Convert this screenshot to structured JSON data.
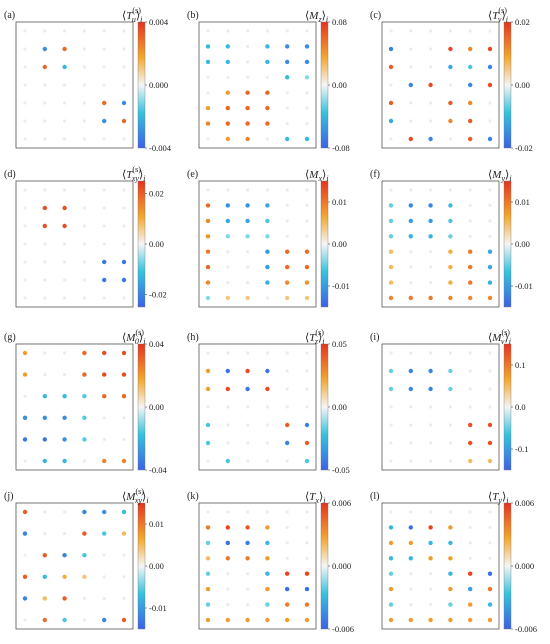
{
  "colormap": {
    "stops": [
      {
        "t": 0.0,
        "color": "#3b62e6"
      },
      {
        "t": 0.28,
        "color": "#35c2dd"
      },
      {
        "t": 0.5,
        "color": "#f5f5f5"
      },
      {
        "t": 0.72,
        "color": "#f2a72e"
      },
      {
        "t": 1.0,
        "color": "#e5331f"
      }
    ]
  },
  "chart_data": [
    {
      "type": "scatter",
      "panel_label": "(a)",
      "title": "⟨T_u^(s)⟩_i",
      "clim": [
        -0.004,
        0.004
      ],
      "ticks": [
        "0.004",
        "0.000",
        "-0.004"
      ],
      "tick_values": [
        0.004,
        0.0,
        -0.004
      ],
      "grid": [
        [
          0,
          0,
          0,
          0,
          0,
          0
        ],
        [
          0,
          -0.003,
          0.003,
          0,
          0,
          0
        ],
        [
          0,
          0.003,
          -0.002,
          0,
          0,
          0
        ],
        [
          0,
          0,
          0,
          0,
          0,
          0
        ],
        [
          0,
          0,
          0,
          0,
          0.003,
          -0.003
        ],
        [
          0,
          0,
          0,
          0,
          -0.003,
          0.003
        ],
        [
          0,
          0,
          0,
          0,
          0,
          0
        ]
      ]
    },
    {
      "type": "scatter",
      "panel_label": "(b)",
      "title": "⟨M_z⟩_i",
      "clim": [
        -0.08,
        0.08
      ],
      "ticks": [
        "0.08",
        "0.00",
        "-0.08"
      ],
      "tick_values": [
        0.08,
        0.0,
        -0.08
      ],
      "grid": [
        [
          0,
          0,
          0,
          0,
          0,
          0
        ],
        [
          -0.04,
          -0.04,
          0,
          -0.04,
          -0.06,
          -0.06
        ],
        [
          -0.04,
          -0.04,
          0,
          -0.04,
          -0.06,
          -0.06
        ],
        [
          0,
          0,
          0,
          0,
          -0.04,
          -0.02
        ],
        [
          0,
          0.04,
          0.06,
          0.06,
          0,
          0
        ],
        [
          0.04,
          0.06,
          0.06,
          0.06,
          0,
          0
        ],
        [
          0.05,
          0.06,
          0.06,
          0.06,
          0,
          0
        ],
        [
          0,
          0.04,
          0.05,
          0,
          -0.04,
          -0.04
        ]
      ]
    },
    {
      "type": "scatter",
      "panel_label": "(c)",
      "title": "⟨T_v^(s)⟩_i",
      "clim": [
        -0.02,
        0.02
      ],
      "ticks": [
        "0.02",
        "0.00",
        "-0.02"
      ],
      "tick_values": [
        0.02,
        0.0,
        -0.02
      ],
      "grid": [
        [
          0,
          0,
          0,
          0,
          0,
          0
        ],
        [
          -0.016,
          0,
          0,
          0.018,
          0.012,
          0.018
        ],
        [
          0.016,
          0,
          0,
          -0.012,
          -0.008,
          -0.016
        ],
        [
          0,
          -0.016,
          0.018,
          0,
          -0.016,
          0.018
        ],
        [
          0.016,
          0,
          0,
          0.016,
          0.012,
          0
        ],
        [
          -0.012,
          0,
          0,
          0.012,
          0.016,
          0
        ],
        [
          0,
          0.018,
          -0.016,
          0,
          0.016,
          -0.016
        ]
      ]
    },
    {
      "type": "scatter",
      "panel_label": "(d)",
      "title": "⟨T_xy^(s)⟩_i",
      "clim": [
        -0.025,
        0.025
      ],
      "ticks": [
        "0.02",
        "0.00",
        "-0.02"
      ],
      "tick_values": [
        0.02,
        0.0,
        -0.02
      ],
      "grid": [
        [
          0,
          0,
          0,
          0,
          0,
          0
        ],
        [
          0,
          0.022,
          0.022,
          0,
          0,
          0
        ],
        [
          0,
          0.022,
          0.022,
          0,
          0,
          0
        ],
        [
          0,
          0,
          0,
          0,
          0,
          0
        ],
        [
          0,
          0,
          0,
          0,
          -0.022,
          -0.022
        ],
        [
          0,
          0,
          0,
          0,
          -0.022,
          -0.022
        ],
        [
          0,
          0,
          0,
          0,
          0,
          0
        ]
      ]
    },
    {
      "type": "scatter",
      "panel_label": "(e)",
      "title": "⟨M_x⟩_i",
      "clim": [
        -0.015,
        0.015
      ],
      "ticks": [
        "0.01",
        "0.00",
        "-0.01"
      ],
      "tick_values": [
        0.01,
        0.0,
        -0.01
      ],
      "grid": [
        [
          0,
          0,
          0,
          0,
          0,
          0
        ],
        [
          0.011,
          -0.011,
          -0.011,
          -0.009,
          0,
          0
        ],
        [
          0.009,
          -0.009,
          -0.009,
          -0.006,
          0,
          0
        ],
        [
          0.008,
          -0.004,
          -0.004,
          -0.004,
          0,
          0
        ],
        [
          0.01,
          0,
          0,
          -0.01,
          0.011,
          0.011
        ],
        [
          0.011,
          0,
          0,
          -0.01,
          0.011,
          0.011
        ],
        [
          0.009,
          0,
          0,
          -0.008,
          0.009,
          0.008
        ],
        [
          -0.004,
          0.004,
          0.004,
          0,
          0.004,
          0.004
        ]
      ]
    },
    {
      "type": "scatter",
      "panel_label": "(f)",
      "title": "⟨M_y⟩_i",
      "clim": [
        -0.015,
        0.015
      ],
      "ticks": [
        "0.01",
        "0.00",
        "-0.01"
      ],
      "tick_values": [
        0.01,
        0.0,
        -0.01
      ],
      "grid": [
        [
          0,
          0,
          0,
          0,
          0,
          0
        ],
        [
          -0.005,
          -0.012,
          -0.012,
          -0.007,
          0,
          0
        ],
        [
          -0.005,
          -0.01,
          -0.01,
          -0.006,
          0,
          0
        ],
        [
          -0.005,
          -0.008,
          -0.008,
          -0.005,
          0,
          0
        ],
        [
          0.005,
          0,
          0,
          0.006,
          0.01,
          -0.009
        ],
        [
          0.005,
          0,
          0,
          0.006,
          0.01,
          -0.009
        ],
        [
          0.005,
          0,
          0,
          0.006,
          0.01,
          -0.008
        ],
        [
          0.009,
          0.01,
          0.01,
          0.009,
          0.009,
          0.009
        ]
      ]
    },
    {
      "type": "scatter",
      "panel_label": "(g)",
      "title": "⟨M_0^(s)⟩_i",
      "clim": [
        -0.04,
        0.04
      ],
      "ticks": [
        "0.04",
        "0.00",
        "-0.04"
      ],
      "tick_values": [
        0.04,
        0.0,
        -0.04
      ],
      "grid": [
        [
          0.02,
          0,
          0,
          0.03,
          0.035,
          0.035
        ],
        [
          0.02,
          0,
          0,
          0.03,
          0.035,
          0.035
        ],
        [
          0,
          -0.02,
          -0.02,
          -0.015,
          0.03,
          0.03
        ],
        [
          -0.03,
          -0.03,
          -0.03,
          -0.015,
          0,
          0
        ],
        [
          -0.035,
          -0.035,
          -0.03,
          -0.015,
          0,
          0
        ],
        [
          0,
          -0.02,
          -0.02,
          0,
          0.025,
          0.025
        ]
      ]
    },
    {
      "type": "scatter",
      "panel_label": "(h)",
      "title": "⟨T_z^(s)⟩_i",
      "clim": [
        -0.05,
        0.05
      ],
      "ticks": [
        "0.05",
        "0.00",
        "-0.05"
      ],
      "tick_values": [
        0.05,
        0.0,
        -0.05
      ],
      "grid": [
        [
          0,
          0,
          0,
          0,
          0,
          0
        ],
        [
          0.025,
          -0.045,
          0.045,
          -0.045,
          0,
          0
        ],
        [
          0.025,
          0.045,
          -0.045,
          0.045,
          0,
          0
        ],
        [
          0,
          0,
          0,
          0,
          0,
          0
        ],
        [
          -0.02,
          0,
          0,
          0,
          0.04,
          -0.04
        ],
        [
          -0.02,
          0,
          0,
          0,
          -0.04,
          0.04
        ],
        [
          0,
          -0.02,
          0,
          0,
          0,
          -0.02
        ]
      ]
    },
    {
      "type": "scatter",
      "panel_label": "(i)",
      "title": "⟨M_v^(s)⟩_i",
      "clim": [
        -0.15,
        0.15
      ],
      "ticks": [
        "0.1",
        "0.0",
        "-0.1"
      ],
      "tick_values": [
        0.1,
        0.0,
        -0.1
      ],
      "grid": [
        [
          0,
          0,
          0,
          0,
          0,
          0
        ],
        [
          -0.05,
          -0.12,
          -0.12,
          -0.05,
          0,
          0
        ],
        [
          -0.05,
          -0.12,
          -0.12,
          -0.05,
          0,
          0
        ],
        [
          0,
          0,
          0,
          0,
          0,
          0
        ],
        [
          0,
          0,
          0,
          0,
          0.13,
          0.13
        ],
        [
          0,
          0,
          0,
          0,
          0.13,
          0.13
        ],
        [
          0,
          0,
          0,
          0,
          0.05,
          0.05
        ]
      ]
    },
    {
      "type": "scatter",
      "panel_label": "(j)",
      "title": "⟨M_xy^(s)⟩_i",
      "clim": [
        -0.015,
        0.015
      ],
      "ticks": [
        "0.01",
        "0.00",
        "-0.01"
      ],
      "tick_values": [
        0.01,
        0.0,
        -0.01
      ],
      "grid": [
        [
          0.012,
          0,
          0,
          -0.012,
          -0.011,
          -0.007
        ],
        [
          -0.012,
          0,
          0,
          0.012,
          -0.006,
          0.005
        ],
        [
          0,
          0.012,
          -0.012,
          -0.006,
          0,
          0
        ],
        [
          0.012,
          -0.007,
          0.006,
          0.004,
          0,
          0
        ],
        [
          -0.012,
          0.005,
          0.012,
          0,
          0,
          0
        ],
        [
          0,
          0.011,
          -0.006,
          0,
          -0.012,
          0.012
        ]
      ]
    },
    {
      "type": "scatter",
      "panel_label": "(k)",
      "title": "⟨T_x⟩_i",
      "clim": [
        -0.006,
        0.006
      ],
      "ticks": [
        "0.006",
        "0.000",
        "-0.006"
      ],
      "tick_values": [
        0.006,
        0.0,
        -0.006
      ],
      "grid": [
        [
          0,
          0,
          0,
          0,
          0,
          0
        ],
        [
          0.004,
          0.0055,
          0.005,
          0.003,
          0,
          0
        ],
        [
          -0.002,
          -0.0055,
          -0.005,
          -0.003,
          0,
          0
        ],
        [
          0.002,
          0.004,
          0.004,
          0.003,
          0,
          0
        ],
        [
          -0.002,
          0,
          0,
          -0.003,
          0.0055,
          0.0055
        ],
        [
          0.003,
          0,
          0,
          0.003,
          -0.0055,
          -0.0055
        ],
        [
          -0.002,
          0,
          0,
          -0.002,
          0.004,
          0.004
        ],
        [
          0.003,
          0.003,
          0.003,
          0.003,
          0.003,
          0.003
        ]
      ]
    },
    {
      "type": "scatter",
      "panel_label": "(l)",
      "title": "⟨T_y⟩_i",
      "clim": [
        -0.006,
        0.006
      ],
      "ticks": [
        "0.006",
        "0.000",
        "-0.006"
      ],
      "tick_values": [
        0.006,
        0.0,
        -0.006
      ],
      "grid": [
        [
          0,
          0,
          0,
          0,
          0,
          0
        ],
        [
          -0.003,
          -0.0055,
          0.0055,
          0.003,
          0,
          0
        ],
        [
          0.003,
          0.003,
          -0.003,
          -0.003,
          0,
          0
        ],
        [
          -0.003,
          -0.003,
          0.003,
          0.003,
          0,
          0
        ],
        [
          -0.002,
          0,
          0,
          -0.003,
          0.0055,
          -0.0055
        ],
        [
          0.003,
          0,
          0,
          0.003,
          -0.004,
          0.004
        ],
        [
          -0.002,
          0,
          0,
          -0.002,
          0.003,
          -0.003
        ],
        [
          0.003,
          0.003,
          0.003,
          0.003,
          0.003,
          0.003
        ]
      ]
    }
  ]
}
